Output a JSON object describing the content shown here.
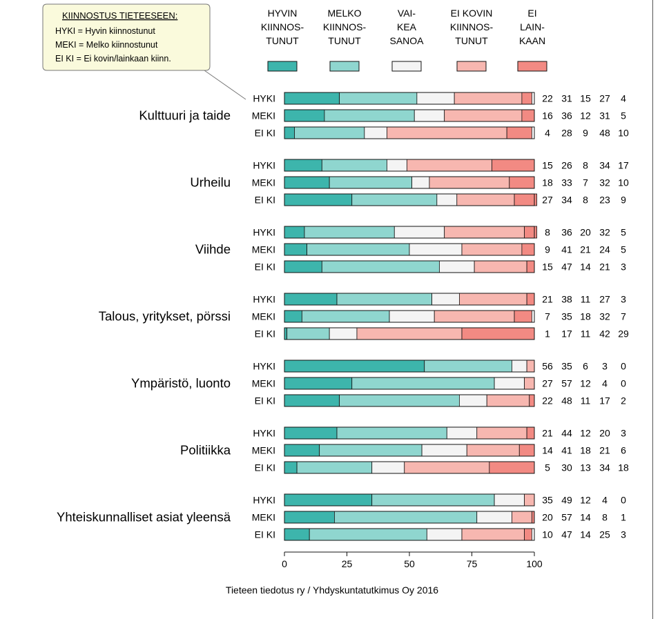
{
  "legend_box": {
    "title": "KIINNOSTUS TIETEESEEN:",
    "lines": [
      "HYKI = Hyvin kiinnostunut",
      "MEKI = Melko kiinnostunut",
      "EI KI  = Ei kovin/lainkaan kiinn."
    ]
  },
  "colors": {
    "hyvin": "#3db5ac",
    "melko": "#8fd6cf",
    "vaikea": "#f4f4f4",
    "ei_kovin": "#f7b7b0",
    "ei_lainkaan": "#f28a83",
    "outline": "#111111",
    "callout_fill": "#fafadc"
  },
  "chart_data": {
    "type": "bar",
    "orientation": "horizontal",
    "stacked": true,
    "xlim": [
      0,
      100
    ],
    "x_ticks": [
      "0",
      "25",
      "50",
      "75",
      "100"
    ],
    "series": [
      {
        "key": "hyvin",
        "label_lines": [
          "HYVIN",
          "KIINNOS-",
          "TUNUT"
        ]
      },
      {
        "key": "melko",
        "label_lines": [
          "MELKO",
          "KIINNOS-",
          "TUNUT"
        ]
      },
      {
        "key": "vaikea",
        "label_lines": [
          "VAI-",
          "KEA",
          "SANOA"
        ]
      },
      {
        "key": "ei_kovin",
        "label_lines": [
          "EI KOVIN",
          "KIINNOS-",
          "TUNUT"
        ]
      },
      {
        "key": "ei_lainkaan",
        "label_lines": [
          "EI",
          "LAIN-",
          "KAAN"
        ]
      }
    ],
    "groups": [
      {
        "name": "Kulttuuri ja taide",
        "rows": [
          {
            "label": "HYKI",
            "values": [
              22,
              31,
              15,
              27,
              4
            ]
          },
          {
            "label": "MEKI",
            "values": [
              16,
              36,
              12,
              31,
              5
            ]
          },
          {
            "label": "EI KI",
            "values": [
              4,
              28,
              9,
              48,
              10
            ]
          }
        ]
      },
      {
        "name": "Urheilu",
        "rows": [
          {
            "label": "HYKI",
            "values": [
              15,
              26,
              8,
              34,
              17
            ]
          },
          {
            "label": "MEKI",
            "values": [
              18,
              33,
              7,
              32,
              10
            ]
          },
          {
            "label": "EI KI",
            "values": [
              27,
              34,
              8,
              23,
              9
            ]
          }
        ]
      },
      {
        "name": "Viihde",
        "rows": [
          {
            "label": "HYKI",
            "values": [
              8,
              36,
              20,
              32,
              5
            ]
          },
          {
            "label": "MEKI",
            "values": [
              9,
              41,
              21,
              24,
              5
            ]
          },
          {
            "label": "EI KI",
            "values": [
              15,
              47,
              14,
              21,
              3
            ]
          }
        ]
      },
      {
        "name": "Talous, yritykset, pörssi",
        "rows": [
          {
            "label": "HYKI",
            "values": [
              21,
              38,
              11,
              27,
              3
            ]
          },
          {
            "label": "MEKI",
            "values": [
              7,
              35,
              18,
              32,
              7
            ]
          },
          {
            "label": "EI KI",
            "values": [
              1,
              17,
              11,
              42,
              29
            ]
          }
        ]
      },
      {
        "name": "Ympäristö, luonto",
        "rows": [
          {
            "label": "HYKI",
            "values": [
              56,
              35,
              6,
              3,
              0
            ]
          },
          {
            "label": "MEKI",
            "values": [
              27,
              57,
              12,
              4,
              0
            ]
          },
          {
            "label": "EI KI",
            "values": [
              22,
              48,
              11,
              17,
              2
            ]
          }
        ]
      },
      {
        "name": "Politiikka",
        "rows": [
          {
            "label": "HYKI",
            "values": [
              21,
              44,
              12,
              20,
              3
            ]
          },
          {
            "label": "MEKI",
            "values": [
              14,
              41,
              18,
              21,
              6
            ]
          },
          {
            "label": "EI KI",
            "values": [
              5,
              30,
              13,
              34,
              18
            ]
          }
        ]
      },
      {
        "name": "Yhteiskunnalliset asiat yleensä",
        "rows": [
          {
            "label": "HYKI",
            "values": [
              35,
              49,
              12,
              4,
              0
            ]
          },
          {
            "label": "MEKI",
            "values": [
              20,
              57,
              14,
              8,
              1
            ]
          },
          {
            "label": "EI KI",
            "values": [
              10,
              47,
              14,
              25,
              3
            ]
          }
        ]
      }
    ]
  },
  "footer": {
    "source": "Tieteen tiedotus ry / Yhdyskuntatutkimus Oy 2016"
  }
}
